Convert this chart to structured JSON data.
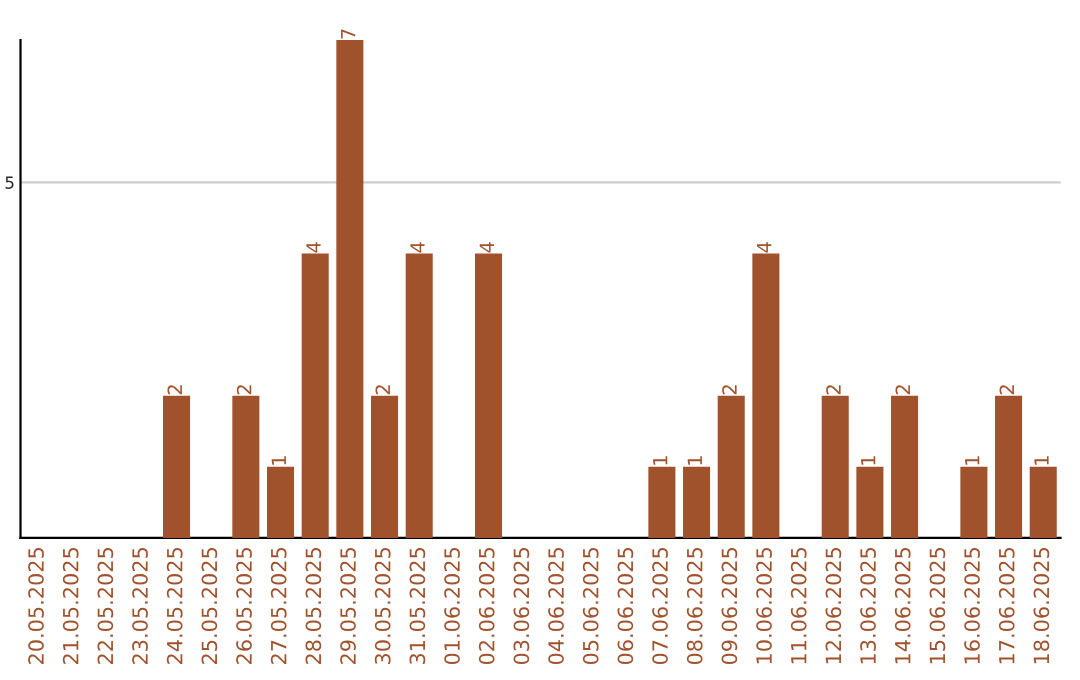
{
  "chart_data": {
    "type": "bar",
    "categories": [
      "20.05.2025",
      "21.05.2025",
      "22.05.2025",
      "23.05.2025",
      "24.05.2025",
      "25.05.2025",
      "26.05.2025",
      "27.05.2025",
      "28.05.2025",
      "29.05.2025",
      "30.05.2025",
      "31.05.2025",
      "01.06.2025",
      "02.06.2025",
      "03.06.2025",
      "04.06.2025",
      "05.06.2025",
      "06.06.2025",
      "07.06.2025",
      "08.06.2025",
      "09.06.2025",
      "10.06.2025",
      "11.06.2025",
      "12.06.2025",
      "13.06.2025",
      "14.06.2025",
      "15.06.2025",
      "16.06.2025",
      "17.06.2025",
      "18.06.2025"
    ],
    "values": [
      0,
      0,
      0,
      0,
      2,
      0,
      2,
      1,
      4,
      7,
      2,
      4,
      0,
      4,
      0,
      0,
      0,
      0,
      1,
      1,
      2,
      4,
      0,
      2,
      1,
      2,
      0,
      1,
      2,
      1
    ],
    "value_labels": [
      null,
      null,
      null,
      null,
      "2",
      null,
      "2",
      "1",
      "4",
      "7",
      "2",
      "4",
      null,
      "4",
      null,
      null,
      null,
      null,
      "1",
      "1",
      "2",
      "4",
      null,
      "2",
      "1",
      "2",
      null,
      "1",
      "2",
      "1"
    ],
    "color": "#a0522d",
    "ylim": [
      0,
      7
    ],
    "yticks": [
      5
    ],
    "grid": "y"
  }
}
